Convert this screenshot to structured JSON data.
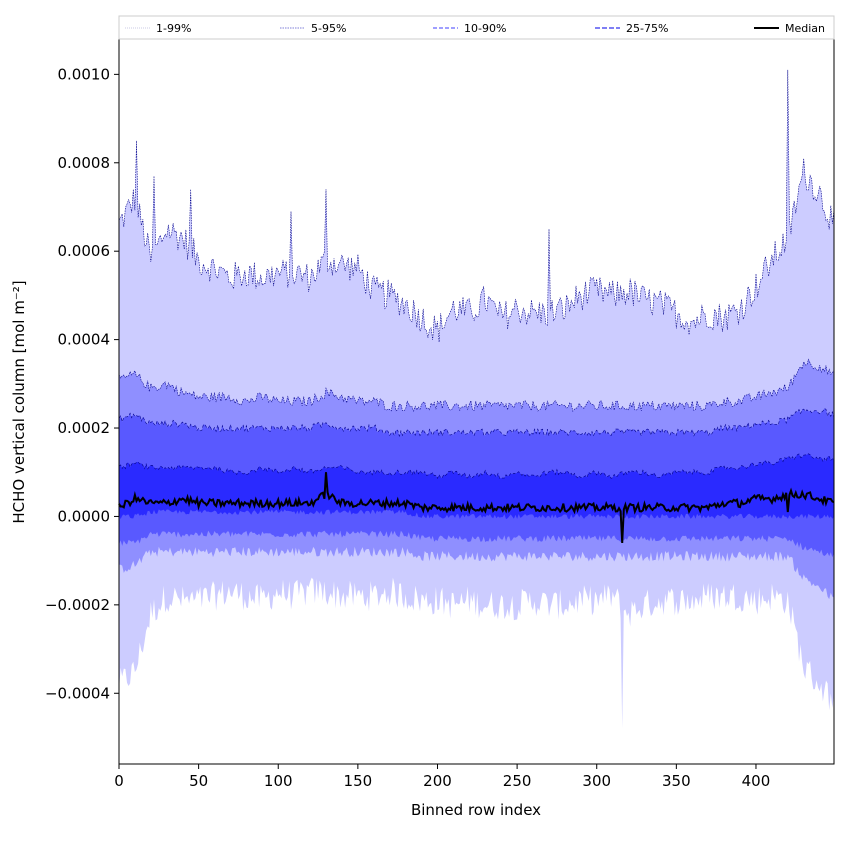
{
  "chart_data": {
    "type": "area",
    "xlabel": "Binned row index",
    "ylabel": "HCHO vertical column [mol m⁻²]",
    "xlim": [
      0,
      449
    ],
    "ylim": [
      -0.00056,
      0.00108
    ],
    "x_ticks": [
      0,
      50,
      100,
      150,
      200,
      250,
      300,
      350,
      400
    ],
    "x_tick_labels": [
      "0",
      "50",
      "100",
      "150",
      "200",
      "250",
      "300",
      "350",
      "400"
    ],
    "y_ticks": [
      -0.0004,
      -0.0002,
      0.0,
      0.0002,
      0.0004,
      0.0006,
      0.0008,
      0.001
    ],
    "y_tick_labels": [
      "−0.0004",
      "−0.0002",
      "0.0000",
      "0.0002",
      "0.0004",
      "0.0006",
      "0.0008",
      "0.0010"
    ],
    "legend": {
      "placement": "top",
      "entries": [
        {
          "label": "1-99%",
          "color": "#ccccff",
          "style": "dotted"
        },
        {
          "label": "5-95%",
          "color": "#8888ee",
          "style": "dotted"
        },
        {
          "label": "10-90%",
          "color": "#6666ff",
          "style": "dashed"
        },
        {
          "label": "25-75%",
          "color": "#3333ee",
          "style": "dashed"
        },
        {
          "label": "Median",
          "color": "#000000",
          "style": "solid"
        }
      ]
    },
    "colors": {
      "band_1_99": "#ccccff",
      "band_5_95": "#8f8fff",
      "band_10_90": "#5959ff",
      "band_25_75": "#2a2aff",
      "edge_dark": "#00008b",
      "median": "#000000"
    },
    "x": [
      0,
      10,
      20,
      30,
      40,
      50,
      60,
      70,
      80,
      90,
      100,
      110,
      120,
      130,
      140,
      150,
      160,
      170,
      180,
      190,
      200,
      210,
      220,
      230,
      240,
      250,
      260,
      270,
      280,
      290,
      300,
      310,
      320,
      330,
      340,
      350,
      360,
      370,
      380,
      390,
      400,
      410,
      420,
      430,
      440,
      449
    ],
    "series": [
      {
        "name": "1-99%",
        "lower": [
          -0.00038,
          -0.00035,
          -0.00022,
          -0.00018,
          -0.00019,
          -0.00019,
          -0.00018,
          -0.00017,
          -0.00018,
          -0.00019,
          -0.00017,
          -0.00018,
          -0.00017,
          -0.00017,
          -0.00018,
          -0.00018,
          -0.00018,
          -0.00017,
          -0.00018,
          -0.00019,
          -0.00019,
          -0.0002,
          -0.00019,
          -0.0002,
          -0.0002,
          -0.0002,
          -0.00019,
          -0.0002,
          -0.0002,
          -0.00019,
          -0.00019,
          -0.00018,
          -0.00022,
          -0.0002,
          -0.00019,
          -0.00019,
          -0.00019,
          -0.00018,
          -0.00018,
          -0.00018,
          -0.00019,
          -0.00018,
          -0.00019,
          -0.00034,
          -0.00038,
          -0.00042
        ],
        "upper": [
          0.00066,
          0.00072,
          0.00058,
          0.00065,
          0.00063,
          0.00058,
          0.00056,
          0.00054,
          0.00055,
          0.00054,
          0.00055,
          0.00055,
          0.00054,
          0.00058,
          0.00057,
          0.00056,
          0.00051,
          0.0005,
          0.00048,
          0.00045,
          0.00042,
          0.00047,
          0.00046,
          0.00049,
          0.00045,
          0.00047,
          0.00046,
          0.00046,
          0.00047,
          0.0005,
          0.00051,
          0.0005,
          0.00051,
          0.00049,
          0.00048,
          0.00046,
          0.00044,
          0.00046,
          0.00045,
          0.00047,
          0.00052,
          0.00058,
          0.00063,
          0.00078,
          0.00073,
          0.00066
        ]
      },
      {
        "name": "5-95%",
        "lower": [
          -0.00012,
          -0.00011,
          -8e-05,
          -8e-05,
          -8e-05,
          -8e-05,
          -8e-05,
          -8e-05,
          -8e-05,
          -8e-05,
          -8e-05,
          -8e-05,
          -8e-05,
          -8e-05,
          -8e-05,
          -8e-05,
          -8e-05,
          -8e-05,
          -8e-05,
          -9e-05,
          -9e-05,
          -9e-05,
          -9e-05,
          -9e-05,
          -9e-05,
          -9e-05,
          -9e-05,
          -9e-05,
          -9e-05,
          -9e-05,
          -9e-05,
          -9e-05,
          -9e-05,
          -9e-05,
          -9e-05,
          -9e-05,
          -9e-05,
          -9e-05,
          -9e-05,
          -9e-05,
          -9e-05,
          -9e-05,
          -9e-05,
          -0.00014,
          -0.00016,
          -0.00019
        ],
        "upper": [
          0.00031,
          0.00032,
          0.00029,
          0.0003,
          0.00028,
          0.00027,
          0.00027,
          0.00027,
          0.00026,
          0.00027,
          0.00026,
          0.00026,
          0.00026,
          0.00028,
          0.00027,
          0.00026,
          0.00026,
          0.00025,
          0.00025,
          0.00025,
          0.00025,
          0.00025,
          0.00025,
          0.00025,
          0.00025,
          0.00025,
          0.00025,
          0.00025,
          0.00025,
          0.00025,
          0.00025,
          0.00025,
          0.00025,
          0.00025,
          0.00025,
          0.00025,
          0.00025,
          0.00025,
          0.00026,
          0.00026,
          0.00027,
          0.00028,
          0.00029,
          0.00035,
          0.00034,
          0.00032
        ]
      },
      {
        "name": "10-90%",
        "lower": [
          -6e-05,
          -6e-05,
          -4e-05,
          -4e-05,
          -4e-05,
          -4e-05,
          -4e-05,
          -4e-05,
          -4e-05,
          -4e-05,
          -4e-05,
          -4e-05,
          -4e-05,
          -4e-05,
          -4e-05,
          -4e-05,
          -4e-05,
          -4e-05,
          -4e-05,
          -5e-05,
          -5e-05,
          -5e-05,
          -5e-05,
          -5e-05,
          -5e-05,
          -5e-05,
          -5e-05,
          -5e-05,
          -5e-05,
          -5e-05,
          -5e-05,
          -5e-05,
          -5e-05,
          -5e-05,
          -5e-05,
          -5e-05,
          -5e-05,
          -5e-05,
          -5e-05,
          -5e-05,
          -5e-05,
          -5e-05,
          -5e-05,
          -7e-05,
          -8e-05,
          -9e-05
        ],
        "upper": [
          0.00022,
          0.00023,
          0.00021,
          0.00021,
          0.00021,
          0.0002,
          0.0002,
          0.0002,
          0.0002,
          0.0002,
          0.0002,
          0.0002,
          0.0002,
          0.00021,
          0.0002,
          0.0002,
          0.0002,
          0.00019,
          0.00019,
          0.00019,
          0.00019,
          0.00019,
          0.00019,
          0.00019,
          0.00019,
          0.00019,
          0.00019,
          0.00019,
          0.00019,
          0.00019,
          0.00019,
          0.00019,
          0.00019,
          0.00019,
          0.00019,
          0.00019,
          0.00019,
          0.00019,
          0.0002,
          0.0002,
          0.00021,
          0.00021,
          0.00022,
          0.00024,
          0.00024,
          0.00023
        ]
      },
      {
        "name": "25-75%",
        "lower": [
          0.0,
          0.0,
          1e-05,
          1e-05,
          1e-05,
          1e-05,
          1e-05,
          1e-05,
          1e-05,
          1e-05,
          1e-05,
          1e-05,
          1e-05,
          1e-05,
          1e-05,
          1e-05,
          1e-05,
          1e-05,
          1e-05,
          0.0,
          0.0,
          0.0,
          0.0,
          0.0,
          0.0,
          0.0,
          0.0,
          0.0,
          0.0,
          0.0,
          0.0,
          0.0,
          0.0,
          0.0,
          0.0,
          0.0,
          0.0,
          0.0,
          0.0,
          0.0,
          0.0,
          0.0,
          0.0,
          0.0,
          0.0,
          0.0
        ],
        "upper": [
          0.00011,
          0.00012,
          0.00011,
          0.00011,
          0.00011,
          0.00011,
          0.00011,
          0.0001,
          0.0001,
          0.00011,
          0.0001,
          0.00011,
          0.0001,
          0.00011,
          0.00011,
          0.0001,
          0.0001,
          0.0001,
          0.0001,
          0.0001,
          9e-05,
          0.0001,
          9e-05,
          0.0001,
          9e-05,
          0.0001,
          9e-05,
          0.0001,
          0.0001,
          9e-05,
          0.0001,
          9e-05,
          0.0001,
          0.0001,
          9e-05,
          0.0001,
          0.0001,
          0.0001,
          0.00011,
          0.00011,
          0.00012,
          0.00012,
          0.00013,
          0.00014,
          0.00013,
          0.00013
        ]
      },
      {
        "name": "Median",
        "values": [
          2e-05,
          4e-05,
          3e-05,
          3e-05,
          4e-05,
          3e-05,
          3e-05,
          3e-05,
          3e-05,
          3e-05,
          3e-05,
          3e-05,
          3e-05,
          5e-05,
          3e-05,
          3e-05,
          3e-05,
          3e-05,
          3e-05,
          2e-05,
          2e-05,
          2e-05,
          2e-05,
          2e-05,
          2e-05,
          2e-05,
          2e-05,
          2e-05,
          2e-05,
          2e-05,
          2e-05,
          2e-05,
          2e-05,
          2e-05,
          2e-05,
          2e-05,
          2e-05,
          2e-05,
          3e-05,
          3e-05,
          4e-05,
          4e-05,
          5e-05,
          5e-05,
          4e-05,
          3e-05
        ]
      }
    ],
    "spikes": [
      {
        "x": 11,
        "upper": 0.00085,
        "series": "1-99%"
      },
      {
        "x": 22,
        "upper": 0.00077,
        "series": "1-99%"
      },
      {
        "x": 45,
        "upper": 0.00074,
        "series": "1-99%"
      },
      {
        "x": 108,
        "upper": 0.00069,
        "series": "1-99%"
      },
      {
        "x": 130,
        "upper": 0.00074,
        "series": "1-99%"
      },
      {
        "x": 270,
        "upper": 0.00065,
        "series": "1-99%"
      },
      {
        "x": 316,
        "lower": -0.00048,
        "series": "1-99%"
      },
      {
        "x": 420,
        "upper": 0.00101,
        "series": "1-99%"
      }
    ]
  }
}
